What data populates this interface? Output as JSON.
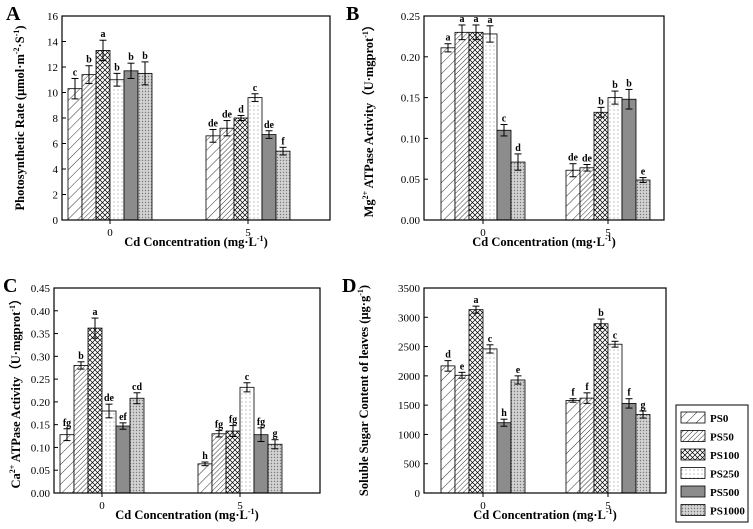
{
  "legend": {
    "entries": [
      {
        "name": "PS0",
        "pattern": "diag-sparse"
      },
      {
        "name": "PS50",
        "pattern": "diag-dense"
      },
      {
        "name": "PS100",
        "pattern": "crosshatch"
      },
      {
        "name": "PS250",
        "pattern": "light-dots"
      },
      {
        "name": "PS500",
        "pattern": "solid-gray"
      },
      {
        "name": "PS1000",
        "pattern": "gray-dots"
      }
    ],
    "placement": "bottom-right"
  },
  "colors": {
    "solid_gray": "#8c8c8c",
    "dots_gray": "#c8c8c8",
    "line": "#000000"
  },
  "chart_data": [
    {
      "panel_label": "A",
      "type": "bar",
      "ylabel_parts": [
        "Photosynthetic Rate (μmol·m",
        "-2",
        "·S",
        "-1",
        ")"
      ],
      "xlabel_parts": [
        "Cd Concentration (mg·L",
        "-1",
        ")"
      ],
      "categories": [
        "0",
        "5"
      ],
      "ylim": [
        0,
        16
      ],
      "yticks": [
        "0",
        "2",
        "4",
        "6",
        "8",
        "10",
        "12",
        "14",
        "16"
      ],
      "series": [
        {
          "name": "PS0",
          "values": [
            10.3,
            6.6
          ],
          "errors": [
            0.8,
            0.5
          ],
          "letters": [
            "c",
            "de"
          ]
        },
        {
          "name": "PS50",
          "values": [
            11.4,
            7.2
          ],
          "errors": [
            0.7,
            0.6
          ],
          "letters": [
            "b",
            "de"
          ]
        },
        {
          "name": "PS100",
          "values": [
            13.3,
            8.0
          ],
          "errors": [
            0.8,
            0.2
          ],
          "letters": [
            "a",
            "d"
          ]
        },
        {
          "name": "PS250",
          "values": [
            11.0,
            9.6
          ],
          "errors": [
            0.5,
            0.3
          ],
          "letters": [
            "b",
            "c"
          ]
        },
        {
          "name": "PS500",
          "values": [
            11.7,
            6.7
          ],
          "errors": [
            0.6,
            0.3
          ],
          "letters": [
            "b",
            "de"
          ]
        },
        {
          "name": "PS1000",
          "values": [
            11.5,
            5.4
          ],
          "errors": [
            0.9,
            0.3
          ],
          "letters": [
            "b",
            "f"
          ]
        }
      ]
    },
    {
      "panel_label": "B",
      "type": "bar",
      "ylabel_parts": [
        "Mg",
        "2+",
        " ATPase Activity（U·mgprot",
        "-1",
        "）"
      ],
      "xlabel_parts": [
        "Cd Concentration (mg·L",
        "-1",
        ")"
      ],
      "categories": [
        "0",
        "5"
      ],
      "ylim": [
        0,
        0.25
      ],
      "yticks": [
        "0.00",
        "0.05",
        "0.10",
        "0.15",
        "0.20",
        "0.25"
      ],
      "series": [
        {
          "name": "PS0",
          "values": [
            0.211,
            0.061
          ],
          "errors": [
            0.005,
            0.008
          ],
          "letters": [
            "a",
            "de"
          ]
        },
        {
          "name": "PS50",
          "values": [
            0.23,
            0.064
          ],
          "errors": [
            0.009,
            0.004
          ],
          "letters": [
            "a",
            "de"
          ]
        },
        {
          "name": "PS100",
          "values": [
            0.23,
            0.132
          ],
          "errors": [
            0.009,
            0.006
          ],
          "letters": [
            "a",
            "b"
          ]
        },
        {
          "name": "PS250",
          "values": [
            0.228,
            0.15
          ],
          "errors": [
            0.01,
            0.008
          ],
          "letters": [
            "a",
            "b"
          ]
        },
        {
          "name": "PS500",
          "values": [
            0.11,
            0.148
          ],
          "errors": [
            0.007,
            0.012
          ],
          "letters": [
            "c",
            "b"
          ]
        },
        {
          "name": "PS1000",
          "values": [
            0.071,
            0.049
          ],
          "errors": [
            0.01,
            0.003
          ],
          "letters": [
            "d",
            "e"
          ]
        }
      ]
    },
    {
      "panel_label": "C",
      "type": "bar",
      "ylabel_parts": [
        "Ca",
        "2+",
        " ATPase Activity（U·mgprot",
        "-1",
        "）"
      ],
      "xlabel_parts": [
        "Cd Concentration (mg·L",
        "-1",
        ")"
      ],
      "categories": [
        "0",
        "5"
      ],
      "ylim": [
        0,
        0.45
      ],
      "yticks": [
        "0.00",
        "0.05",
        "0.10",
        "0.15",
        "0.20",
        "0.25",
        "0.30",
        "0.35",
        "0.40",
        "0.45"
      ],
      "series": [
        {
          "name": "PS0",
          "values": [
            0.128,
            0.064
          ],
          "errors": [
            0.013,
            0.004
          ],
          "letters": [
            "fg",
            "h"
          ]
        },
        {
          "name": "PS50",
          "values": [
            0.28,
            0.13
          ],
          "errors": [
            0.008,
            0.007
          ],
          "letters": [
            "b",
            "fg"
          ]
        },
        {
          "name": "PS100",
          "values": [
            0.362,
            0.136
          ],
          "errors": [
            0.022,
            0.012
          ],
          "letters": [
            "a",
            "fg"
          ]
        },
        {
          "name": "PS250",
          "values": [
            0.18,
            0.232
          ],
          "errors": [
            0.015,
            0.01
          ],
          "letters": [
            "de",
            "c"
          ]
        },
        {
          "name": "PS500",
          "values": [
            0.147,
            0.128
          ],
          "errors": [
            0.007,
            0.015
          ],
          "letters": [
            "ef",
            "fg"
          ]
        },
        {
          "name": "PS1000",
          "values": [
            0.208,
            0.107
          ],
          "errors": [
            0.012,
            0.01
          ],
          "letters": [
            "cd",
            "g"
          ]
        }
      ]
    },
    {
      "panel_label": "D",
      "type": "bar",
      "ylabel_parts": [
        "Soluble Sugar Content of leaves (μg·g",
        "-1",
        ")"
      ],
      "xlabel_parts": [
        "Cd Concentration (mg·L",
        "-1",
        ")"
      ],
      "categories": [
        "0",
        "5"
      ],
      "ylim": [
        0,
        3500
      ],
      "yticks": [
        "0",
        "500",
        "1000",
        "1500",
        "2000",
        "2500",
        "3000",
        "3500"
      ],
      "series": [
        {
          "name": "PS0",
          "values": [
            2170,
            1580
          ],
          "errors": [
            90,
            30
          ],
          "letters": [
            "d",
            "f"
          ]
        },
        {
          "name": "PS50",
          "values": [
            2010,
            1620
          ],
          "errors": [
            50,
            90
          ],
          "letters": [
            "e",
            "f"
          ]
        },
        {
          "name": "PS100",
          "values": [
            3130,
            2890
          ],
          "errors": [
            60,
            80
          ],
          "letters": [
            "a",
            "b"
          ]
        },
        {
          "name": "PS250",
          "values": [
            2460,
            2540
          ],
          "errors": [
            70,
            50
          ],
          "letters": [
            "c",
            "c"
          ]
        },
        {
          "name": "PS500",
          "values": [
            1200,
            1530
          ],
          "errors": [
            60,
            80
          ],
          "letters": [
            "h",
            "f"
          ]
        },
        {
          "name": "PS1000",
          "values": [
            1930,
            1340
          ],
          "errors": [
            70,
            60
          ],
          "letters": [
            "e",
            "g"
          ]
        }
      ]
    }
  ]
}
